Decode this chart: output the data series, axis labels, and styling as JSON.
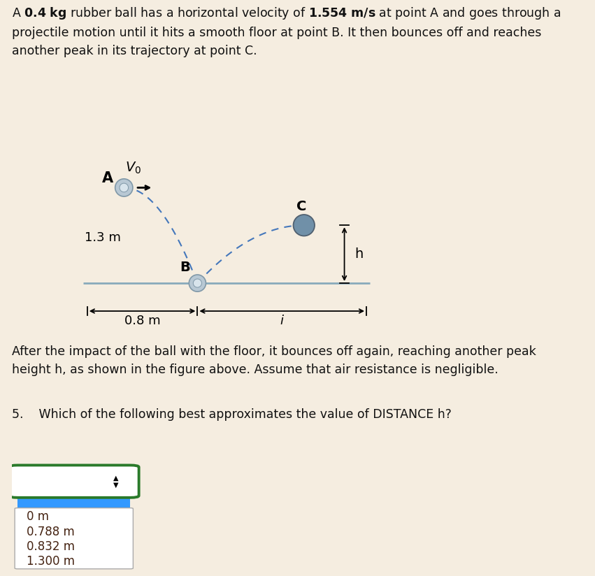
{
  "background_color": "#f5ede0",
  "ball_color_light": "#b8c8d4",
  "ball_color_dark": "#7090a8",
  "ball_edge_color": "#8098a8",
  "floor_line_color": "#88aabb",
  "traj_color": "#4477bb",
  "dim_color": "#111111",
  "dropdown_border_color": "#2a7a2a",
  "highlight_color": "#3399ff",
  "dropdown_options": [
    "0 m",
    "0.788 m",
    "0.832 m",
    "1.300 m"
  ],
  "label_13m": "1.3 m",
  "label_08m": "0.8 m",
  "label_i": "i",
  "label_h": "h",
  "label_A": "A",
  "label_B": "B",
  "label_C": "C"
}
